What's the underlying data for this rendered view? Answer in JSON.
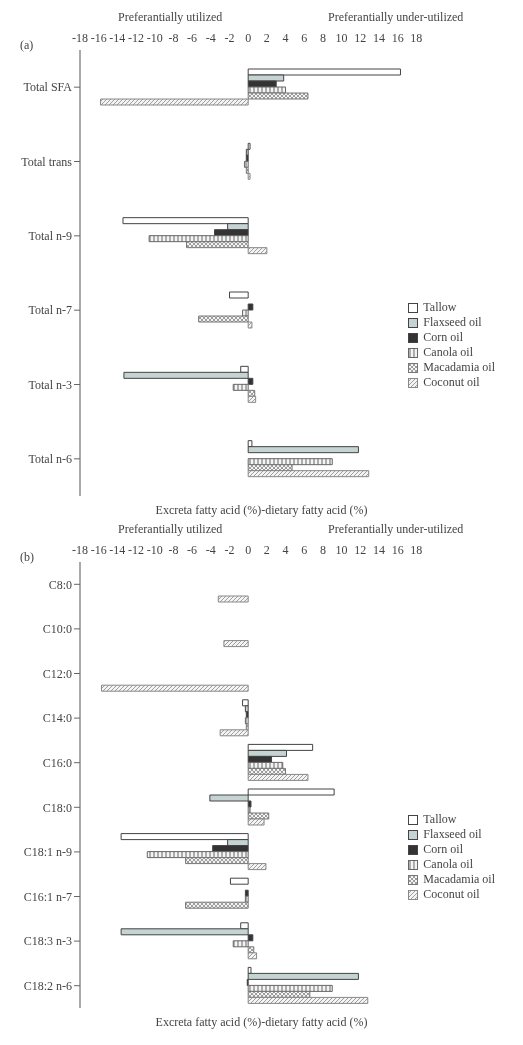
{
  "chart_data": [
    {
      "type": "bar",
      "orientation": "horizontal",
      "title": "(a)",
      "annotations": [
        "Preferantially utilized",
        "Preferantially under-utilized"
      ],
      "xlabel": "Excreta fatty acid (%)-dietary fatty acid (%)",
      "categories": [
        "Total SFA",
        "Total trans",
        "Total n-9",
        "Total n-7",
        "Total n-3",
        "Total n-6"
      ],
      "series": [
        {
          "name": "Tallow",
          "color": "#ffffff",
          "values": [
            16.3,
            0.2,
            -13.4,
            -2.0,
            -0.8,
            0.4
          ]
        },
        {
          "name": "Flaxseed oil",
          "color": "#c5d3d3",
          "values": [
            3.8,
            -0.2,
            -2.2,
            null,
            -13.3,
            11.8
          ]
        },
        {
          "name": "Corn oil",
          "color": "#333333",
          "values": [
            3.0,
            -0.2,
            -3.6,
            0.5,
            0.5,
            null
          ]
        },
        {
          "name": "Canola oil",
          "color": "#666666",
          "values": [
            4.0,
            -0.4,
            -10.6,
            -0.6,
            -1.6,
            9.0
          ]
        },
        {
          "name": "Macadamia oil",
          "color": "#777777",
          "values": [
            6.4,
            -0.2,
            -6.6,
            -5.3,
            0.7,
            4.7
          ]
        },
        {
          "name": "Coconut oil",
          "color": "#888888",
          "values": [
            -15.8,
            0.2,
            2.0,
            0.4,
            0.8,
            12.9
          ]
        }
      ],
      "xlim": [
        -18,
        18
      ],
      "xticks": [
        -18,
        -16,
        -14,
        -12,
        -10,
        -8,
        -6,
        -4,
        -2,
        0,
        2,
        4,
        6,
        8,
        10,
        12,
        14,
        16,
        18
      ],
      "grid": false,
      "legend": "bottom right"
    },
    {
      "type": "bar",
      "orientation": "horizontal",
      "title": "(b)",
      "annotations": [
        "Preferantially utilized",
        "Preferantially under-utilized"
      ],
      "xlabel": "Excreta fatty acid (%)-dietary fatty acid (%)",
      "categories": [
        "C8:0",
        "C10:0",
        "C12:0",
        "C14:0",
        "C16:0",
        "C18:0",
        "C18:1 n-9",
        "C16:1 n-7",
        "C18:3 n-3",
        "C18:2 n-6"
      ],
      "series": [
        {
          "name": "Tallow",
          "color": "#ffffff",
          "values": [
            null,
            null,
            null,
            -0.6,
            6.9,
            9.2,
            -13.6,
            -1.9,
            -0.8,
            0.3
          ]
        },
        {
          "name": "Flaxseed oil",
          "color": "#c5d3d3",
          "values": [
            null,
            null,
            null,
            -0.3,
            4.1,
            -4.1,
            -2.2,
            null,
            -13.6,
            11.8
          ]
        },
        {
          "name": "Corn oil",
          "color": "#333333",
          "values": [
            null,
            null,
            null,
            -0.2,
            2.5,
            0.3,
            -3.8,
            -0.3,
            0.5,
            -0.1
          ]
        },
        {
          "name": "Canola oil",
          "color": "#666666",
          "values": [
            null,
            null,
            null,
            -0.3,
            3.7,
            0.2,
            -10.8,
            -0.3,
            -1.6,
            9.0
          ]
        },
        {
          "name": "Macadamia oil",
          "color": "#777777",
          "values": [
            null,
            null,
            null,
            -0.2,
            4.0,
            2.2,
            -6.7,
            -6.7,
            0.6,
            6.6
          ]
        },
        {
          "name": "Coconut oil",
          "color": "#888888",
          "values": [
            -3.2,
            -2.6,
            -15.7,
            -3.0,
            6.4,
            1.7,
            1.9,
            null,
            0.9,
            12.8
          ]
        }
      ],
      "xlim": [
        -18,
        18
      ],
      "xticks": [
        -18,
        -16,
        -14,
        -12,
        -10,
        -8,
        -6,
        -4,
        -2,
        0,
        2,
        4,
        6,
        8,
        10,
        12,
        14,
        16,
        18
      ],
      "grid": false,
      "legend": "bottom right"
    }
  ]
}
